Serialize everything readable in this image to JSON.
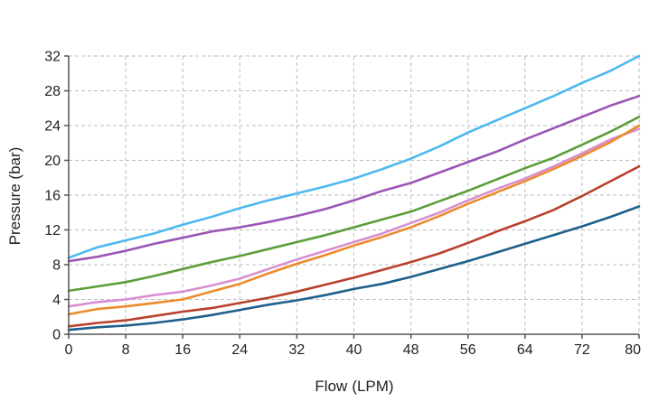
{
  "chart_data": {
    "type": "line",
    "title": "",
    "xlabel": "Flow",
    "xlabel_unit": "(LPM)",
    "ylabel": "Pressure (bar)",
    "xlim": [
      0,
      80
    ],
    "ylim": [
      0,
      32
    ],
    "xticks": [
      0,
      8,
      16,
      24,
      32,
      40,
      48,
      56,
      64,
      72,
      80
    ],
    "yticks": [
      0,
      4,
      8,
      12,
      16,
      20,
      24,
      28,
      32
    ],
    "grid": true,
    "legend": "none",
    "x": [
      0,
      4,
      8,
      12,
      16,
      20,
      24,
      28,
      32,
      36,
      40,
      44,
      48,
      52,
      56,
      60,
      64,
      68,
      72,
      76,
      80
    ],
    "series": [
      {
        "color": "#4db8f0",
        "values": [
          8.8,
          10.0,
          10.8,
          11.6,
          12.6,
          13.5,
          14.5,
          15.4,
          16.2,
          17.0,
          17.9,
          19.0,
          20.2,
          21.6,
          23.2,
          24.6,
          26.0,
          27.4,
          28.9,
          30.3,
          32.0
        ]
      },
      {
        "color": "#9b55b5",
        "values": [
          8.4,
          8.9,
          9.6,
          10.4,
          11.1,
          11.8,
          12.3,
          12.9,
          13.6,
          14.4,
          15.4,
          16.5,
          17.4,
          18.6,
          19.8,
          21.0,
          22.4,
          23.7,
          25.0,
          26.3,
          27.4
        ]
      },
      {
        "color": "#5a9e3a",
        "values": [
          5.0,
          5.5,
          6.0,
          6.7,
          7.5,
          8.3,
          9.0,
          9.8,
          10.6,
          11.4,
          12.3,
          13.2,
          14.1,
          15.3,
          16.5,
          17.8,
          19.1,
          20.3,
          21.8,
          23.3,
          25.0
        ]
      },
      {
        "color": "#d78fd0",
        "values": [
          3.2,
          3.7,
          4.0,
          4.5,
          4.9,
          5.6,
          6.4,
          7.5,
          8.6,
          9.6,
          10.6,
          11.6,
          12.8,
          14.0,
          15.4,
          16.7,
          17.9,
          19.3,
          20.8,
          22.4,
          23.6
        ]
      },
      {
        "color": "#ec8a2d",
        "values": [
          2.3,
          2.9,
          3.2,
          3.6,
          4.0,
          4.9,
          5.8,
          7.0,
          8.1,
          9.1,
          10.2,
          11.2,
          12.3,
          13.6,
          15.0,
          16.3,
          17.6,
          19.0,
          20.5,
          22.1,
          24.0
        ]
      },
      {
        "color": "#b8402c",
        "values": [
          0.9,
          1.3,
          1.6,
          2.1,
          2.6,
          3.0,
          3.6,
          4.2,
          4.9,
          5.7,
          6.5,
          7.4,
          8.3,
          9.3,
          10.5,
          11.8,
          13.0,
          14.3,
          15.9,
          17.6,
          19.3
        ]
      },
      {
        "color": "#1f5f8b",
        "values": [
          0.5,
          0.8,
          1.0,
          1.3,
          1.7,
          2.2,
          2.8,
          3.4,
          3.9,
          4.5,
          5.2,
          5.8,
          6.6,
          7.5,
          8.4,
          9.4,
          10.4,
          11.4,
          12.4,
          13.5,
          14.7
        ]
      }
    ]
  }
}
